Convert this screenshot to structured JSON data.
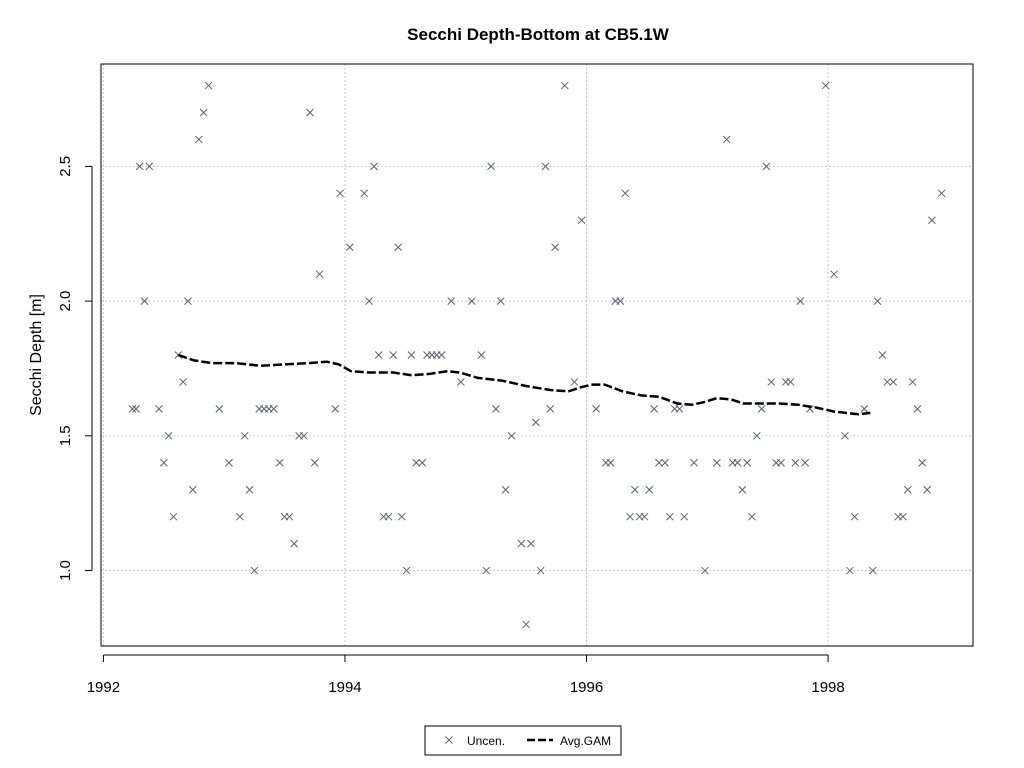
{
  "chart_data": {
    "type": "scatter",
    "title": "Secchi Depth-Bottom at CB5.1W",
    "xlabel": "",
    "ylabel": "Secchi Depth [m]",
    "xlim": [
      1991.98,
      1999.2
    ],
    "ylim": [
      0.72,
      2.88
    ],
    "x_ticks": [
      1992,
      1994,
      1996,
      1998
    ],
    "x_tick_labels": [
      "1992",
      "1994",
      "1996",
      "1998"
    ],
    "y_ticks": [
      1.0,
      1.5,
      2.0,
      2.5
    ],
    "y_tick_labels": [
      "1.0",
      "1.5",
      "2.0",
      "2.5"
    ],
    "grid": true,
    "legend_position": "bottom-center",
    "colors": {
      "points": "#5a6170",
      "gam": "#000000",
      "grid": "#c8c8c8",
      "axis": "#000000"
    },
    "legend": [
      {
        "label": "Uncen.",
        "marker": "x"
      },
      {
        "label": "Avg.GAM",
        "marker": "dashed-line"
      }
    ],
    "series": [
      {
        "name": "Uncen.",
        "style": "x-marker",
        "points": [
          [
            1992.24,
            1.6
          ],
          [
            1992.27,
            1.6
          ],
          [
            1992.3,
            2.5
          ],
          [
            1992.34,
            2.0
          ],
          [
            1992.38,
            2.5
          ],
          [
            1992.46,
            1.6
          ],
          [
            1992.5,
            1.4
          ],
          [
            1992.54,
            1.5
          ],
          [
            1992.58,
            1.2
          ],
          [
            1992.62,
            1.8
          ],
          [
            1992.66,
            1.7
          ],
          [
            1992.7,
            2.0
          ],
          [
            1992.74,
            1.3
          ],
          [
            1992.79,
            2.6
          ],
          [
            1992.83,
            2.7
          ],
          [
            1992.87,
            2.8
          ],
          [
            1992.96,
            1.6
          ],
          [
            1993.04,
            1.4
          ],
          [
            1993.13,
            1.2
          ],
          [
            1993.17,
            1.5
          ],
          [
            1993.21,
            1.3
          ],
          [
            1993.25,
            1.0
          ],
          [
            1993.29,
            1.6
          ],
          [
            1993.33,
            1.6
          ],
          [
            1993.37,
            1.6
          ],
          [
            1993.41,
            1.6
          ],
          [
            1993.46,
            1.4
          ],
          [
            1993.5,
            1.2
          ],
          [
            1993.54,
            1.2
          ],
          [
            1993.58,
            1.1
          ],
          [
            1993.62,
            1.5
          ],
          [
            1993.66,
            1.5
          ],
          [
            1993.71,
            2.7
          ],
          [
            1993.75,
            1.4
          ],
          [
            1993.79,
            2.1
          ],
          [
            1993.92,
            1.6
          ],
          [
            1993.96,
            2.4
          ],
          [
            1994.04,
            2.2
          ],
          [
            1994.16,
            2.4
          ],
          [
            1994.2,
            2.0
          ],
          [
            1994.24,
            2.5
          ],
          [
            1994.28,
            1.8
          ],
          [
            1994.32,
            1.2
          ],
          [
            1994.36,
            1.2
          ],
          [
            1994.4,
            1.8
          ],
          [
            1994.44,
            2.2
          ],
          [
            1994.47,
            1.2
          ],
          [
            1994.51,
            1.0
          ],
          [
            1994.55,
            1.8
          ],
          [
            1994.59,
            1.4
          ],
          [
            1994.64,
            1.4
          ],
          [
            1994.68,
            1.8
          ],
          [
            1994.72,
            1.8
          ],
          [
            1994.76,
            1.8
          ],
          [
            1994.8,
            1.8
          ],
          [
            1994.88,
            2.0
          ],
          [
            1994.96,
            1.7
          ],
          [
            1995.05,
            2.0
          ],
          [
            1995.13,
            1.8
          ],
          [
            1995.17,
            1.0
          ],
          [
            1995.21,
            2.5
          ],
          [
            1995.25,
            1.6
          ],
          [
            1995.29,
            2.0
          ],
          [
            1995.33,
            1.3
          ],
          [
            1995.38,
            1.5
          ],
          [
            1995.46,
            1.1
          ],
          [
            1995.5,
            0.8
          ],
          [
            1995.54,
            1.1
          ],
          [
            1995.58,
            1.55
          ],
          [
            1995.62,
            1.0
          ],
          [
            1995.66,
            2.5
          ],
          [
            1995.7,
            1.6
          ],
          [
            1995.74,
            2.2
          ],
          [
            1995.82,
            2.8
          ],
          [
            1995.9,
            1.7
          ],
          [
            1995.96,
            2.3
          ],
          [
            1996.08,
            1.6
          ],
          [
            1996.16,
            1.4
          ],
          [
            1996.2,
            1.4
          ],
          [
            1996.24,
            2.0
          ],
          [
            1996.28,
            2.0
          ],
          [
            1996.32,
            2.4
          ],
          [
            1996.36,
            1.2
          ],
          [
            1996.4,
            1.3
          ],
          [
            1996.44,
            1.2
          ],
          [
            1996.48,
            1.2
          ],
          [
            1996.52,
            1.3
          ],
          [
            1996.56,
            1.6
          ],
          [
            1996.6,
            1.4
          ],
          [
            1996.65,
            1.4
          ],
          [
            1996.69,
            1.2
          ],
          [
            1996.73,
            1.6
          ],
          [
            1996.77,
            1.6
          ],
          [
            1996.81,
            1.2
          ],
          [
            1996.89,
            1.4
          ],
          [
            1996.98,
            1.0
          ],
          [
            1997.08,
            1.4
          ],
          [
            1997.16,
            2.6
          ],
          [
            1997.21,
            1.4
          ],
          [
            1997.25,
            1.4
          ],
          [
            1997.29,
            1.3
          ],
          [
            1997.33,
            1.4
          ],
          [
            1997.37,
            1.2
          ],
          [
            1997.41,
            1.5
          ],
          [
            1997.45,
            1.6
          ],
          [
            1997.49,
            2.5
          ],
          [
            1997.53,
            1.7
          ],
          [
            1997.57,
            1.4
          ],
          [
            1997.61,
            1.4
          ],
          [
            1997.65,
            1.7
          ],
          [
            1997.69,
            1.7
          ],
          [
            1997.73,
            1.4
          ],
          [
            1997.77,
            2.0
          ],
          [
            1997.81,
            1.4
          ],
          [
            1997.85,
            1.6
          ],
          [
            1997.98,
            2.8
          ],
          [
            1998.05,
            2.1
          ],
          [
            1998.14,
            1.5
          ],
          [
            1998.18,
            1.0
          ],
          [
            1998.22,
            1.2
          ],
          [
            1998.3,
            1.6
          ],
          [
            1998.37,
            1.0
          ],
          [
            1998.41,
            2.0
          ],
          [
            1998.45,
            1.8
          ],
          [
            1998.49,
            1.7
          ],
          [
            1998.54,
            1.7
          ],
          [
            1998.58,
            1.2
          ],
          [
            1998.62,
            1.2
          ],
          [
            1998.66,
            1.3
          ],
          [
            1998.7,
            1.7
          ],
          [
            1998.74,
            1.6
          ],
          [
            1998.78,
            1.4
          ],
          [
            1998.82,
            1.3
          ],
          [
            1998.86,
            2.3
          ],
          [
            1998.94,
            2.4
          ]
        ]
      },
      {
        "name": "Avg.GAM",
        "style": "dashed-line",
        "points": [
          [
            1992.62,
            1.8
          ],
          [
            1992.75,
            1.78
          ],
          [
            1992.9,
            1.77
          ],
          [
            1993.1,
            1.77
          ],
          [
            1993.3,
            1.76
          ],
          [
            1993.5,
            1.765
          ],
          [
            1993.7,
            1.77
          ],
          [
            1993.85,
            1.775
          ],
          [
            1993.95,
            1.765
          ],
          [
            1994.05,
            1.74
          ],
          [
            1994.2,
            1.735
          ],
          [
            1994.4,
            1.735
          ],
          [
            1994.55,
            1.725
          ],
          [
            1994.7,
            1.73
          ],
          [
            1994.85,
            1.74
          ],
          [
            1994.95,
            1.735
          ],
          [
            1995.1,
            1.715
          ],
          [
            1995.3,
            1.705
          ],
          [
            1995.5,
            1.685
          ],
          [
            1995.7,
            1.67
          ],
          [
            1995.85,
            1.665
          ],
          [
            1995.95,
            1.68
          ],
          [
            1996.05,
            1.69
          ],
          [
            1996.15,
            1.69
          ],
          [
            1996.3,
            1.665
          ],
          [
            1996.45,
            1.65
          ],
          [
            1996.6,
            1.645
          ],
          [
            1996.75,
            1.62
          ],
          [
            1996.87,
            1.615
          ],
          [
            1996.97,
            1.625
          ],
          [
            1997.08,
            1.64
          ],
          [
            1997.2,
            1.635
          ],
          [
            1997.3,
            1.62
          ],
          [
            1997.45,
            1.62
          ],
          [
            1997.6,
            1.62
          ],
          [
            1997.75,
            1.615
          ],
          [
            1997.9,
            1.605
          ],
          [
            1998.05,
            1.59
          ],
          [
            1998.15,
            1.585
          ],
          [
            1998.25,
            1.58
          ],
          [
            1998.35,
            1.585
          ]
        ]
      }
    ]
  }
}
